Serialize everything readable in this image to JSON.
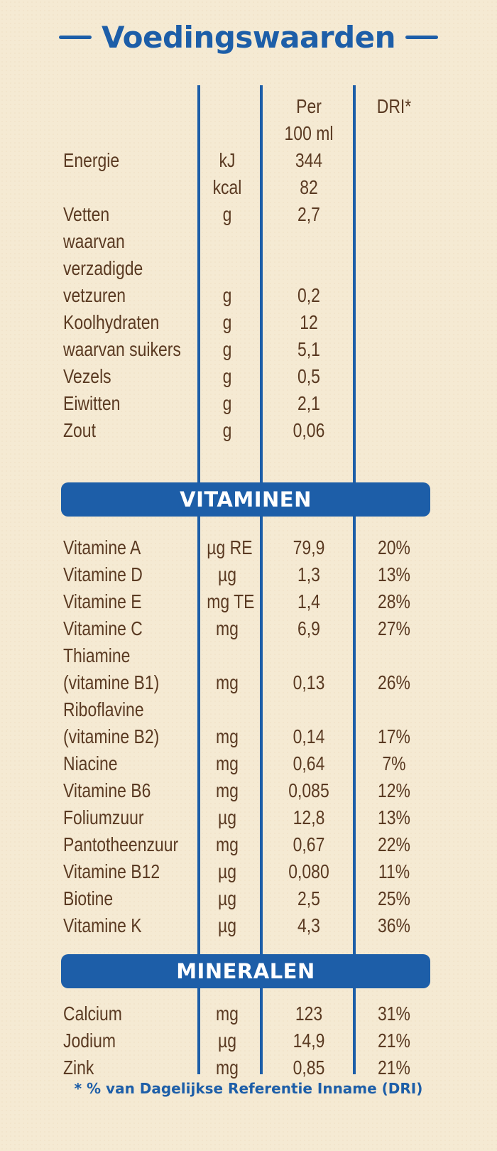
{
  "title": "Voedingswaarden",
  "header": {
    "per_line1": "Per",
    "per_line2": "100 ml",
    "dri": "DRI*"
  },
  "nutrients": [
    {
      "name": "Energie",
      "unit": "kJ",
      "value": "344",
      "dri": ""
    },
    {
      "name": "",
      "unit": "kcal",
      "value": "82",
      "dri": ""
    },
    {
      "name": "Vetten",
      "unit": "g",
      "value": "2,7",
      "dri": ""
    },
    {
      "name": "waarvan",
      "unit": "",
      "value": "",
      "dri": ""
    },
    {
      "name": "verzadigde",
      "unit": "",
      "value": "",
      "dri": ""
    },
    {
      "name": "vetzuren",
      "unit": "g",
      "value": "0,2",
      "dri": ""
    },
    {
      "name": "Koolhydraten",
      "unit": "g",
      "value": "12",
      "dri": ""
    },
    {
      "name": "waarvan suikers",
      "unit": "g",
      "value": "5,1",
      "dri": ""
    },
    {
      "name": "Vezels",
      "unit": "g",
      "value": "0,5",
      "dri": ""
    },
    {
      "name": "Eiwitten",
      "unit": "g",
      "value": "2,1",
      "dri": ""
    },
    {
      "name": "Zout",
      "unit": "g",
      "value": "0,06",
      "dri": ""
    }
  ],
  "vitamins_title": "VITAMINEN",
  "vitamins": [
    {
      "name": "Vitamine A",
      "unit": "µg RE",
      "value": "79,9",
      "dri": "20%"
    },
    {
      "name": "Vitamine D",
      "unit": "µg",
      "value": "1,3",
      "dri": "13%"
    },
    {
      "name": "Vitamine E",
      "unit": "mg TE",
      "value": "1,4",
      "dri": "28%"
    },
    {
      "name": "Vitamine C",
      "unit": "mg",
      "value": "6,9",
      "dri": "27%"
    },
    {
      "name": "Thiamine",
      "unit": "",
      "value": "",
      "dri": ""
    },
    {
      "name": "(vitamine B1)",
      "unit": "mg",
      "value": "0,13",
      "dri": "26%"
    },
    {
      "name": "Riboflavine",
      "unit": "",
      "value": "",
      "dri": ""
    },
    {
      "name": "(vitamine B2)",
      "unit": "mg",
      "value": "0,14",
      "dri": "17%"
    },
    {
      "name": "Niacine",
      "unit": "mg",
      "value": "0,64",
      "dri": "7%"
    },
    {
      "name": "Vitamine B6",
      "unit": "mg",
      "value": "0,085",
      "dri": "12%"
    },
    {
      "name": "Foliumzuur",
      "unit": "µg",
      "value": "12,8",
      "dri": "13%"
    },
    {
      "name": "Pantotheenzuur",
      "unit": "mg",
      "value": "0,67",
      "dri": "22%"
    },
    {
      "name": "Vitamine B12",
      "unit": "µg",
      "value": "0,080",
      "dri": "11%"
    },
    {
      "name": "Biotine",
      "unit": "µg",
      "value": "2,5",
      "dri": "25%"
    },
    {
      "name": "Vitamine K",
      "unit": "µg",
      "value": "4,3",
      "dri": "36%"
    }
  ],
  "minerals_title": "MINERALEN",
  "minerals": [
    {
      "name": "Calcium",
      "unit": "mg",
      "value": "123",
      "dri": "31%"
    },
    {
      "name": "Jodium",
      "unit": "µg",
      "value": "14,9",
      "dri": "21%"
    },
    {
      "name": "Zink",
      "unit": "mg",
      "value": "0,85",
      "dri": "21%"
    }
  ],
  "footnote": "* % van Dagelijkse Referentie Inname (DRI)",
  "colors": {
    "accent_blue": "#1d5ea8",
    "text_brown": "#5a3a22",
    "background": "#f5ead3"
  }
}
